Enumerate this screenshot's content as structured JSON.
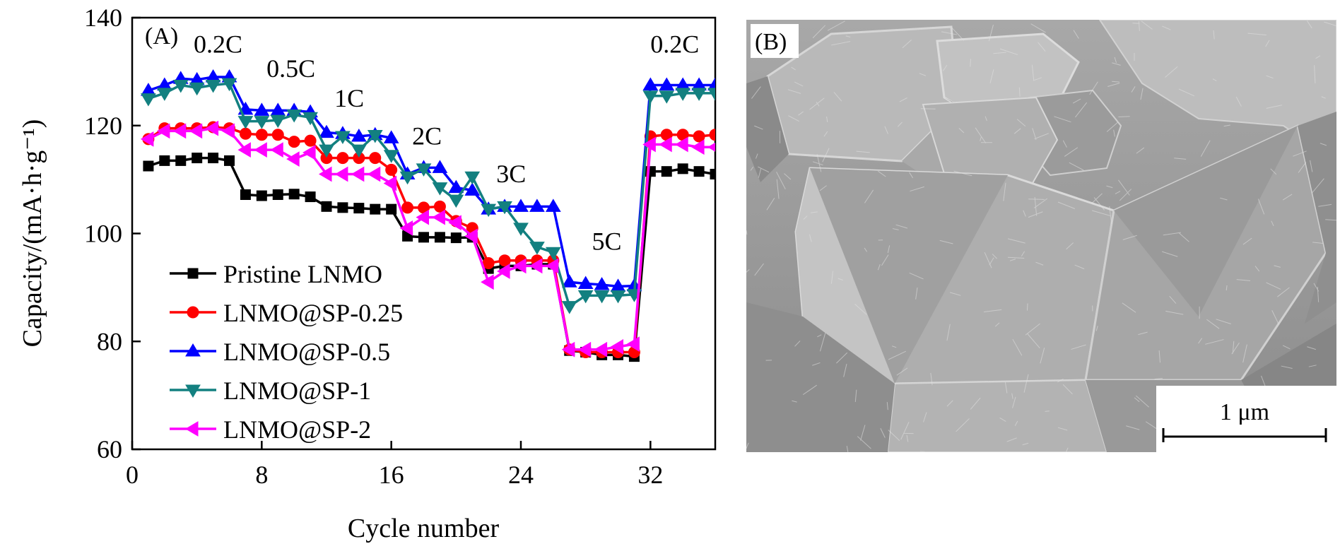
{
  "chart_data": {
    "type": "line",
    "panel_label": "(A)",
    "xlabel": "Cycle number",
    "ylabel": "Capacity/(mA·h·g⁻¹)",
    "xlim": [
      0,
      36
    ],
    "ylim": [
      60,
      140
    ],
    "xticks": [
      0,
      8,
      16,
      24,
      32
    ],
    "yticks": [
      60,
      80,
      100,
      120,
      140
    ],
    "rate_labels": [
      {
        "text": "0.2C",
        "x": 5.3,
        "y": 133.5
      },
      {
        "text": "0.5C",
        "x": 9.8,
        "y": 129
      },
      {
        "text": "1C",
        "x": 13.4,
        "y": 123.5
      },
      {
        "text": "2C",
        "x": 18.2,
        "y": 116.5
      },
      {
        "text": "3C",
        "x": 23.4,
        "y": 109.5
      },
      {
        "text": "5C",
        "x": 29.3,
        "y": 97
      },
      {
        "text": "0.2C",
        "x": 33.5,
        "y": 133.5
      }
    ],
    "legend": {
      "position": "lower-left"
    },
    "x": [
      1,
      2,
      3,
      4,
      5,
      6,
      7,
      8,
      9,
      10,
      11,
      12,
      13,
      14,
      15,
      16,
      17,
      18,
      19,
      20,
      21,
      22,
      23,
      24,
      25,
      26,
      27,
      28,
      29,
      30,
      31,
      32,
      33,
      34,
      35,
      36
    ],
    "series": [
      {
        "name": "Pristine LNMO",
        "color": "#000000",
        "marker": "square",
        "values": [
          112.5,
          113.5,
          113.5,
          114,
          114,
          113.5,
          107.2,
          107,
          107.2,
          107.3,
          106.8,
          105,
          104.8,
          104.7,
          104.5,
          104.5,
          99.5,
          99.3,
          99.3,
          99.2,
          99.3,
          93.5,
          94,
          94,
          94.3,
          94.3,
          78.3,
          78,
          77.5,
          77.5,
          77.2,
          111.5,
          111.5,
          112,
          111.5,
          111
        ]
      },
      {
        "name": "LNMO@SP-0.25",
        "color": "#ff0000",
        "marker": "circle",
        "values": [
          117.5,
          119.5,
          119.5,
          119.5,
          119.7,
          119.5,
          118.5,
          118.3,
          118.3,
          117,
          117.2,
          114,
          114,
          114,
          114,
          111.8,
          104.8,
          104.8,
          105,
          102.3,
          101,
          94.5,
          95,
          95,
          95,
          95,
          78.5,
          78,
          78,
          78,
          78,
          118,
          118.3,
          118.3,
          118,
          118.3
        ]
      },
      {
        "name": "LNMO@SP-0.5",
        "color": "#0000ff",
        "marker": "triangle-up",
        "values": [
          126.5,
          127.5,
          128.7,
          128.5,
          129,
          129,
          123,
          122.8,
          122.8,
          122.8,
          122.5,
          118.7,
          118.5,
          118,
          118.3,
          117.7,
          111,
          112.2,
          112.2,
          108.5,
          108,
          104.5,
          105,
          105,
          105,
          105,
          91,
          90.7,
          90.5,
          90.2,
          90.3,
          127.5,
          127.5,
          127.5,
          127.5,
          127.5
        ]
      },
      {
        "name": "LNMO@SP-1",
        "color": "#138080",
        "marker": "triangle-down",
        "values": [
          125,
          126,
          127.5,
          127,
          127.5,
          127.8,
          120.8,
          120.8,
          121,
          122,
          121.5,
          115.5,
          118,
          115.5,
          118.2,
          114.5,
          110.5,
          112,
          108.5,
          106.2,
          110.5,
          104.5,
          105,
          101,
          97.5,
          96.5,
          86.5,
          88.5,
          88.5,
          88.5,
          88.7,
          125.5,
          125.5,
          126,
          126,
          126
        ]
      },
      {
        "name": "LNMO@SP-2",
        "color": "#ff00ff",
        "marker": "triangle-left",
        "values": [
          117.5,
          119,
          119,
          119,
          119.5,
          119,
          115.5,
          115.5,
          115.5,
          113.8,
          115,
          111,
          111,
          111,
          111,
          109.3,
          101,
          103,
          103,
          102,
          99.5,
          91,
          93,
          94,
          94,
          94,
          78.5,
          78.5,
          78.5,
          79,
          79.5,
          116.5,
          116.5,
          116.5,
          116,
          116
        ]
      }
    ]
  },
  "sem_image": {
    "panel_label": "(B)",
    "scale_bar_label": "1 μm"
  }
}
